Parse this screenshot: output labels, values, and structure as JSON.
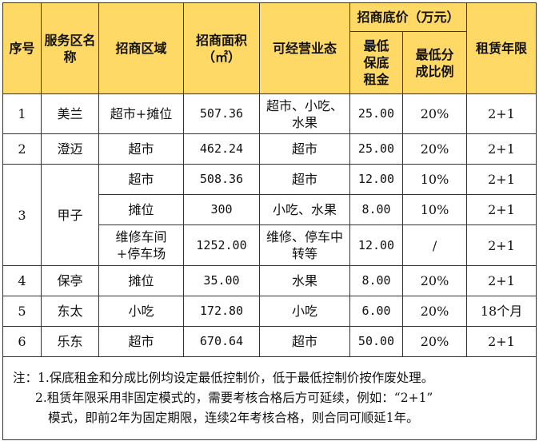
{
  "headers": {
    "seq": "序号",
    "area_name": "服务区名称",
    "zone": "招商区域",
    "size": "招商面积（㎡）",
    "business": "可经营业态",
    "base_price_group": "招商底价（万元）",
    "min_rent": "最低保底租金",
    "min_share": "最低分成比例",
    "term": "租赁年限"
  },
  "rows": [
    {
      "seq": "1",
      "name": "美兰",
      "zone": "超市+摊位",
      "size": "507.36",
      "business": "超市、小吃、水果",
      "rent": "25.00",
      "share": "20%",
      "term": "2+1"
    },
    {
      "seq": "2",
      "name": "澄迈",
      "zone": "超市",
      "size": "462.24",
      "business": "超市",
      "rent": "25.00",
      "share": "20%",
      "term": "2+1"
    },
    {
      "seq": "3",
      "name": "甲子",
      "zone": "超市",
      "size": "508.36",
      "business": "超市",
      "rent": "12.00",
      "share": "10%",
      "term": "2+1"
    },
    {
      "seq": "",
      "name": "",
      "zone": "摊位",
      "size": "300",
      "business": "小吃、水果",
      "rent": "8.00",
      "share": "10%",
      "term": "2+1"
    },
    {
      "seq": "",
      "name": "",
      "zone": "维修车间+停车场",
      "size": "1252.00",
      "business": "维修、停车中转等",
      "rent": "12.00",
      "share": "/",
      "term": "2+1"
    },
    {
      "seq": "4",
      "name": "保亭",
      "zone": "摊位",
      "size": "35.00",
      "business": "水果",
      "rent": "8.00",
      "share": "20%",
      "term": "2+1"
    },
    {
      "seq": "5",
      "name": "东太",
      "zone": "小吃",
      "size": "172.80",
      "business": "小吃",
      "rent": "6.00",
      "share": "20%",
      "term": "18个月"
    },
    {
      "seq": "6",
      "name": "乐东",
      "zone": "超市",
      "size": "670.64",
      "business": "超市",
      "rent": "50.00",
      "share": "20%",
      "term": "2+1"
    }
  ],
  "notes": {
    "line1": "注：1.保底租金和分成比例均设定最低控制价，低于最低控制价按作废处理。",
    "line2": "2.租赁年限采用非固定模式的，需要考核合格后方可延续，例如：“2+1”",
    "line3": "模式，即前2年为固定期限，连续2年考核合格，则合同可顺延1年。"
  },
  "colors": {
    "header_bg": "#ffd966",
    "border": "#333333"
  }
}
